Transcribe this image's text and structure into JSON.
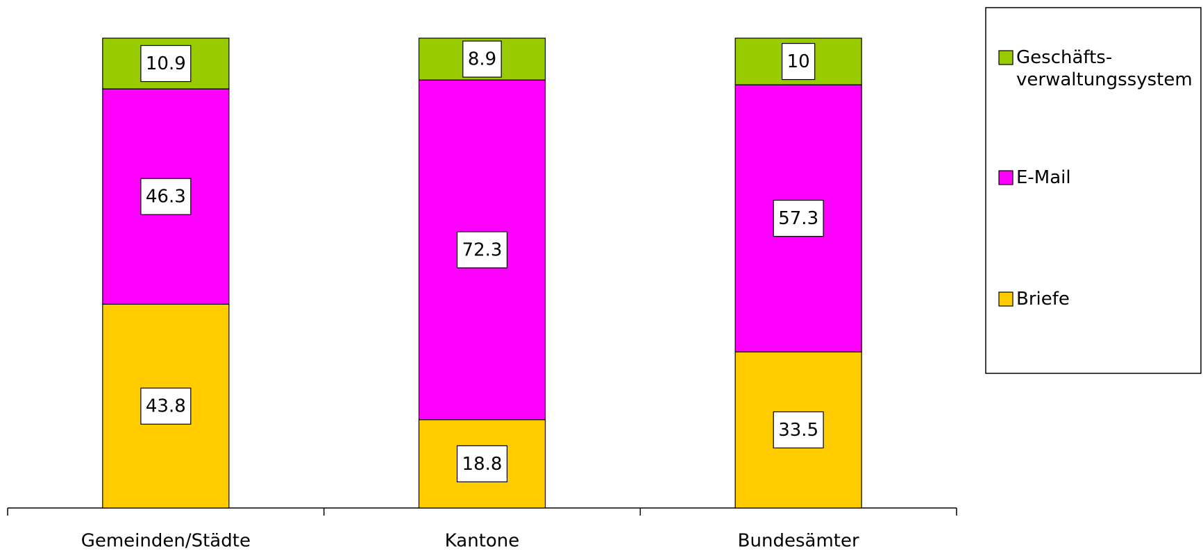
{
  "chart_data": {
    "type": "bar",
    "stacked": "percent",
    "categories": [
      "Gemeinden/Städte",
      "Kantone",
      "Bundesämter"
    ],
    "series": [
      {
        "name": "Briefe",
        "color": "#ffcc00",
        "values": [
          43.8,
          18.8,
          33.5
        ]
      },
      {
        "name": "E-Mail",
        "color": "#ff00ff",
        "values": [
          46.3,
          72.3,
          57.3
        ]
      },
      {
        "name": "Geschäfts-verwaltungssystem",
        "color": "#99cc00",
        "values": [
          10.9,
          8.9,
          10
        ]
      }
    ],
    "legend": "right"
  }
}
